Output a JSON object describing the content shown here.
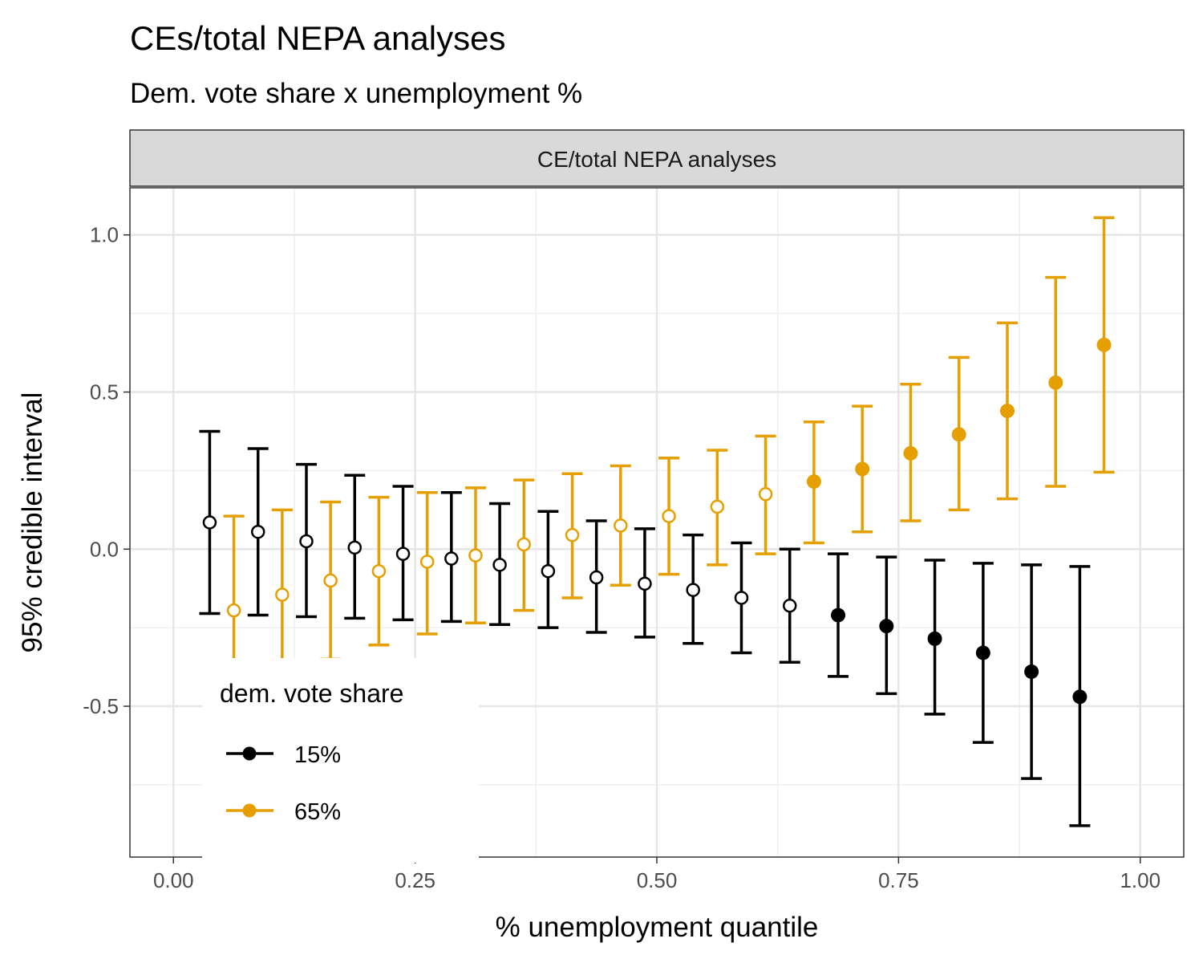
{
  "chart_data": {
    "type": "scatter",
    "title": "CEs/total NEPA analyses",
    "subtitle": "Dem. vote share x unemployment %",
    "facet_label": "CE/total NEPA analyses",
    "xlabel": "% unemployment quantile",
    "ylabel": "95% credible interval",
    "xlim": [
      -0.045,
      1.045
    ],
    "ylim": [
      -0.98,
      1.15
    ],
    "x_ticks": [
      0,
      0.25,
      0.5,
      0.75,
      1
    ],
    "x_tick_labels": [
      "0.00",
      "0.25",
      "0.50",
      "0.75",
      "1.00"
    ],
    "y_ticks": [
      -0.5,
      0,
      0.5,
      1
    ],
    "y_tick_labels": [
      "-0.5",
      "0.0",
      "0.5",
      "1.0"
    ],
    "grid": true,
    "legend": {
      "title": "dem. vote share",
      "placement": "bottom-left",
      "entries": [
        "15%",
        "65%"
      ]
    },
    "series": [
      {
        "name": "15%",
        "color": "#000000",
        "x": [
          0.0375,
          0.0875,
          0.1375,
          0.1875,
          0.2375,
          0.2875,
          0.3375,
          0.3875,
          0.4375,
          0.4875,
          0.5375,
          0.5875,
          0.6375,
          0.6875,
          0.7375,
          0.7875,
          0.8375,
          0.8875,
          0.9375
        ],
        "y": [
          0.085,
          0.055,
          0.025,
          0.005,
          -0.015,
          -0.03,
          -0.05,
          -0.07,
          -0.09,
          -0.11,
          -0.13,
          -0.155,
          -0.18,
          -0.21,
          -0.245,
          -0.285,
          -0.33,
          -0.39,
          -0.47
        ],
        "lower": [
          -0.205,
          -0.21,
          -0.215,
          -0.22,
          -0.225,
          -0.23,
          -0.24,
          -0.25,
          -0.265,
          -0.28,
          -0.3,
          -0.33,
          -0.36,
          -0.405,
          -0.46,
          -0.525,
          -0.615,
          -0.73,
          -0.88
        ],
        "upper": [
          0.375,
          0.32,
          0.27,
          0.235,
          0.2,
          0.18,
          0.145,
          0.12,
          0.09,
          0.065,
          0.045,
          0.02,
          0.0,
          -0.015,
          -0.025,
          -0.035,
          -0.045,
          -0.05,
          -0.055
        ],
        "significant": [
          false,
          false,
          false,
          false,
          false,
          false,
          false,
          false,
          false,
          false,
          false,
          false,
          false,
          true,
          true,
          true,
          true,
          true,
          true
        ]
      },
      {
        "name": "65%",
        "color": "#E69F00",
        "x": [
          0.0625,
          0.1125,
          0.1625,
          0.2125,
          0.2625,
          0.3125,
          0.3625,
          0.4125,
          0.4625,
          0.5125,
          0.5625,
          0.6125,
          0.6625,
          0.7125,
          0.7625,
          0.8125,
          0.8625,
          0.9125,
          0.9625
        ],
        "y": [
          -0.195,
          -0.145,
          -0.1,
          -0.07,
          -0.04,
          -0.02,
          0.015,
          0.045,
          0.075,
          0.105,
          0.135,
          0.175,
          0.215,
          0.255,
          0.305,
          0.365,
          0.44,
          0.53,
          0.65
        ],
        "lower": [
          -0.49,
          -0.42,
          -0.35,
          -0.305,
          -0.27,
          -0.235,
          -0.195,
          -0.155,
          -0.115,
          -0.08,
          -0.05,
          -0.015,
          0.02,
          0.055,
          0.09,
          0.125,
          0.16,
          0.2,
          0.245
        ],
        "upper": [
          0.105,
          0.125,
          0.15,
          0.165,
          0.18,
          0.195,
          0.22,
          0.24,
          0.265,
          0.29,
          0.315,
          0.36,
          0.405,
          0.455,
          0.525,
          0.61,
          0.72,
          0.865,
          1.055
        ],
        "significant": [
          false,
          false,
          false,
          false,
          false,
          false,
          false,
          false,
          false,
          false,
          false,
          false,
          true,
          true,
          true,
          true,
          true,
          true,
          true
        ]
      }
    ]
  }
}
